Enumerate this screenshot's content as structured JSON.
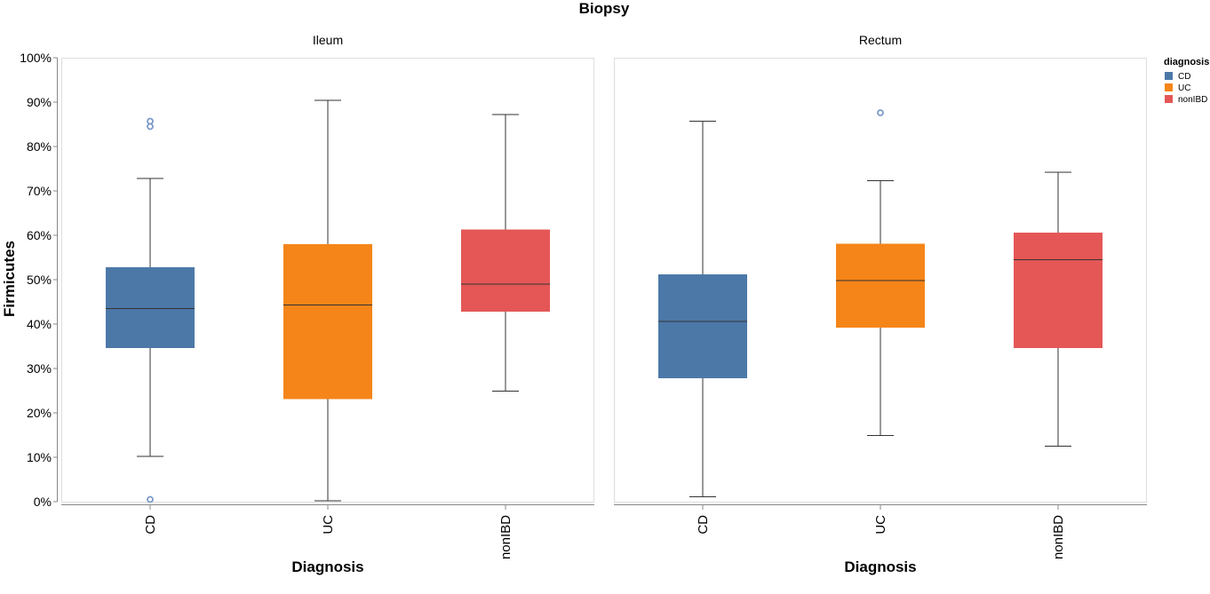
{
  "chart_data": {
    "type": "boxplot",
    "title": "Biopsy",
    "ylabel": "Firmicutes",
    "xlabel": "Diagnosis",
    "ylim": [
      0,
      1
    ],
    "yticks": [
      0,
      0.1,
      0.2,
      0.3,
      0.4,
      0.5,
      0.6,
      0.7,
      0.8,
      0.9,
      1.0
    ],
    "ytick_labels": [
      "0%",
      "10%",
      "20%",
      "30%",
      "40%",
      "50%",
      "60%",
      "70%",
      "80%",
      "90%",
      "100%"
    ],
    "categories": [
      "CD",
      "UC",
      "nonIBD"
    ],
    "facets": [
      {
        "name": "Ileum",
        "boxes": [
          {
            "category": "CD",
            "min": 0.102,
            "q1": 0.346,
            "median": 0.435,
            "q3": 0.528,
            "max": 0.728,
            "outliers": [
              0.005,
              0.845,
              0.857
            ]
          },
          {
            "category": "UC",
            "min": 0.002,
            "q1": 0.231,
            "median": 0.443,
            "q3": 0.58,
            "max": 0.904,
            "outliers": []
          },
          {
            "category": "nonIBD",
            "min": 0.249,
            "q1": 0.428,
            "median": 0.49,
            "q3": 0.613,
            "max": 0.872,
            "outliers": []
          }
        ]
      },
      {
        "name": "Rectum",
        "boxes": [
          {
            "category": "CD",
            "min": 0.011,
            "q1": 0.278,
            "median": 0.406,
            "q3": 0.512,
            "max": 0.857,
            "outliers": []
          },
          {
            "category": "UC",
            "min": 0.149,
            "q1": 0.392,
            "median": 0.498,
            "q3": 0.581,
            "max": 0.723,
            "outliers": [
              0.876
            ]
          },
          {
            "category": "nonIBD",
            "min": 0.125,
            "q1": 0.346,
            "median": 0.545,
            "q3": 0.606,
            "max": 0.742,
            "outliers": []
          }
        ]
      }
    ],
    "legend": {
      "title": "diagnosis",
      "placement": "top-right",
      "entries": [
        {
          "label": "CD",
          "color": "#4c78a8"
        },
        {
          "label": "UC",
          "color": "#f58518"
        },
        {
          "label": "nonIBD",
          "color": "#e45756"
        }
      ]
    }
  }
}
